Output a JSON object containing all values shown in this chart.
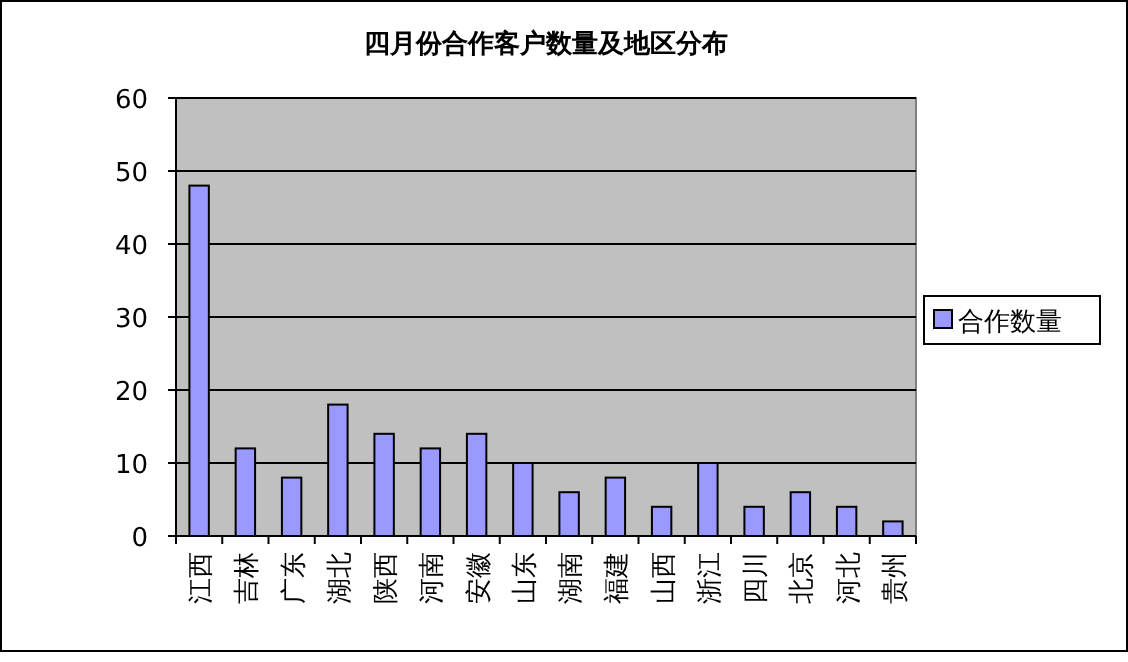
{
  "chart_data": {
    "type": "bar",
    "title": "四月份合作客户数量及地区分布",
    "categories": [
      "江西",
      "吉林",
      "广东",
      "湖北",
      "陕西",
      "河南",
      "安徽",
      "山东",
      "湖南",
      "福建",
      "山西",
      "浙江",
      "四川",
      "北京",
      "河北",
      "贵州"
    ],
    "series": [
      {
        "name": "合作数量",
        "color": "#9999ff",
        "values": [
          48,
          12,
          8,
          18,
          14,
          12,
          14,
          10,
          6,
          8,
          4,
          10,
          4,
          6,
          4,
          2
        ]
      }
    ],
    "ylim": [
      0,
      60
    ],
    "yticks": [
      0,
      10,
      20,
      30,
      40,
      50,
      60
    ],
    "grid": "y",
    "legend": "right"
  }
}
